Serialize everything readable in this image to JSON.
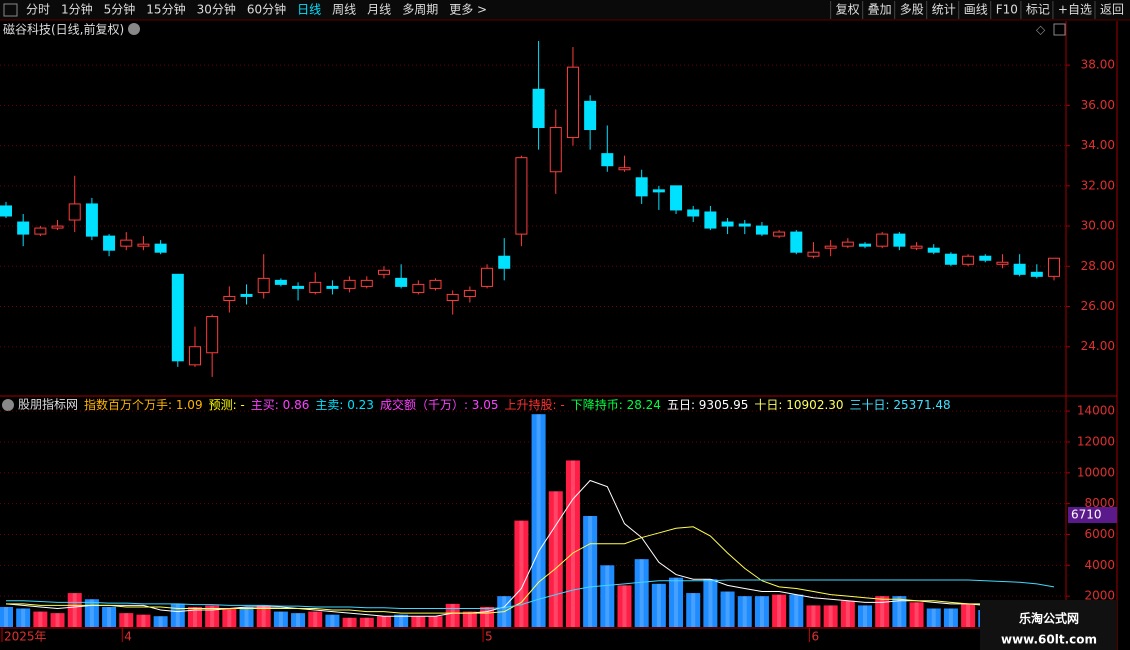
{
  "toolbar": {
    "periods": [
      {
        "label": "分时"
      },
      {
        "label": "1分钟"
      },
      {
        "label": "5分钟"
      },
      {
        "label": "15分钟"
      },
      {
        "label": "30分钟"
      },
      {
        "label": "60分钟"
      },
      {
        "label": "日线",
        "active": true
      },
      {
        "label": "周线"
      },
      {
        "label": "月线"
      },
      {
        "label": "多周期"
      },
      {
        "label": "更多 >"
      }
    ],
    "tools": [
      "复权",
      "叠加",
      "多股",
      "统计",
      "画线",
      "F10",
      "标记",
      "+自选",
      "返回"
    ]
  },
  "chart_data": [
    {
      "type": "candlestick",
      "title": "磁谷科技(日线,前复权)",
      "categories": [
        "2025年",
        null,
        null,
        null,
        null,
        null,
        null,
        "4",
        null,
        null,
        null,
        null,
        null,
        null,
        null,
        null,
        null,
        null,
        null,
        null,
        null,
        null,
        null,
        null,
        null,
        null,
        null,
        null,
        "5",
        null,
        null,
        null,
        null,
        null,
        null,
        null,
        null,
        null,
        null,
        null,
        null,
        null,
        null,
        null,
        null,
        null,
        null,
        "6",
        null,
        null,
        null,
        null,
        null,
        null,
        null,
        null,
        null,
        null,
        null,
        null,
        null,
        null
      ],
      "open": [
        31.0,
        30.2,
        29.6,
        29.9,
        30.3,
        31.1,
        29.5,
        29.0,
        29.0,
        29.1,
        27.6,
        23.1,
        23.7,
        26.3,
        26.6,
        26.7,
        27.3,
        27.0,
        26.7,
        27.0,
        26.9,
        27.0,
        27.6,
        27.4,
        26.7,
        26.9,
        26.3,
        26.5,
        27.0,
        28.5,
        29.6,
        36.8,
        32.7,
        34.4,
        36.2,
        33.6,
        32.8,
        32.4,
        31.8,
        32.0,
        30.8,
        30.7,
        30.2,
        30.1,
        30.0,
        29.5,
        29.7,
        28.5,
        28.9,
        29.0,
        29.1,
        29.0,
        29.6,
        28.9,
        28.9,
        28.6,
        28.1,
        28.5,
        28.1,
        28.1,
        27.7,
        27.5
      ],
      "high": [
        31.2,
        30.6,
        30.0,
        30.3,
        32.5,
        31.4,
        29.6,
        29.7,
        29.5,
        29.3,
        27.6,
        25.0,
        25.6,
        27.0,
        27.1,
        28.6,
        27.4,
        27.2,
        27.7,
        27.3,
        27.5,
        27.5,
        28.0,
        28.1,
        27.3,
        27.4,
        26.8,
        27.0,
        28.1,
        29.4,
        33.5,
        39.2,
        35.8,
        38.9,
        36.5,
        35.0,
        33.5,
        32.8,
        32.0,
        32.0,
        31.0,
        31.0,
        30.4,
        30.3,
        30.2,
        29.8,
        29.8,
        29.2,
        29.3,
        29.4,
        29.2,
        29.7,
        29.7,
        29.2,
        29.1,
        28.7,
        28.6,
        28.6,
        28.6,
        28.6,
        28.1,
        28.4
      ],
      "low": [
        30.4,
        29.0,
        29.5,
        29.8,
        29.7,
        29.3,
        28.5,
        28.8,
        28.8,
        28.6,
        23.0,
        23.0,
        22.5,
        25.7,
        26.1,
        26.4,
        27.0,
        26.3,
        26.6,
        26.6,
        26.7,
        26.9,
        27.4,
        26.9,
        26.6,
        26.8,
        25.6,
        26.2,
        26.9,
        27.3,
        29.0,
        33.8,
        31.6,
        34.0,
        33.8,
        32.7,
        32.7,
        31.1,
        30.8,
        30.6,
        30.2,
        29.8,
        29.6,
        29.6,
        29.5,
        29.4,
        28.6,
        28.4,
        28.5,
        28.9,
        28.9,
        28.9,
        28.8,
        28.8,
        28.6,
        28.0,
        28.0,
        28.2,
        27.9,
        27.5,
        27.4,
        27.3
      ],
      "close": [
        30.5,
        29.6,
        29.9,
        30.0,
        31.1,
        29.5,
        28.8,
        29.3,
        29.1,
        28.7,
        23.3,
        24.0,
        25.5,
        26.5,
        26.5,
        27.4,
        27.1,
        26.9,
        27.2,
        26.9,
        27.3,
        27.3,
        27.8,
        27.0,
        27.1,
        27.3,
        26.6,
        26.8,
        27.9,
        27.9,
        33.4,
        34.9,
        34.9,
        37.9,
        34.8,
        33.0,
        32.9,
        31.5,
        31.7,
        30.8,
        30.5,
        29.9,
        30.0,
        30.0,
        29.6,
        29.7,
        28.7,
        28.7,
        29.0,
        29.2,
        29.0,
        29.6,
        29.0,
        29.0,
        28.7,
        28.1,
        28.5,
        28.3,
        28.2,
        27.6,
        27.5,
        28.4
      ],
      "up_color": "#ff3c3c",
      "down_color": "#00e1ff",
      "ylim": [
        21.6,
        39.35
      ],
      "yticks": [
        {
          "value": 24,
          "label": "24.00"
        },
        {
          "value": 26,
          "label": "26.00"
        },
        {
          "value": 28,
          "label": "28.00"
        },
        {
          "value": 30,
          "label": "30.00"
        },
        {
          "value": 32,
          "label": "32.00"
        },
        {
          "value": 34,
          "label": "34.00"
        },
        {
          "value": 36,
          "label": "36.00"
        },
        {
          "value": 38,
          "label": "38.00"
        }
      ],
      "grid": true
    },
    {
      "type": "bar",
      "title": "股朋指标网",
      "indicators": [
        {
          "label": "指数百万个万手: 1.09",
          "color": "#ffb400"
        },
        {
          "label": "预测: -",
          "color": "#ffff00"
        },
        {
          "label": "主买: 0.86",
          "color": "#ff40ff"
        },
        {
          "label": "主卖: 0.23",
          "color": "#00e1ff"
        },
        {
          "label": "成交额（千万）: 3.05",
          "color": "#ff40ff"
        },
        {
          "label": "上升持股: -",
          "color": "#ff3030"
        },
        {
          "label": "下降持币: 28.24",
          "color": "#00ff40"
        },
        {
          "label": "五日: 9305.95",
          "color": "#ffffff"
        },
        {
          "label": "十日: 10902.30",
          "color": "#ffff60"
        },
        {
          "label": "三十日: 25371.48",
          "color": "#40e0ff"
        }
      ],
      "values": [
        1300,
        1200,
        1000,
        900,
        2200,
        1800,
        1300,
        900,
        800,
        700,
        1500,
        1300,
        1400,
        1200,
        1300,
        1400,
        1000,
        900,
        1000,
        800,
        600,
        600,
        700,
        800,
        700,
        700,
        1500,
        1000,
        1300,
        2000,
        6900,
        13800,
        8800,
        10800,
        7200,
        4000,
        2700,
        4400,
        2800,
        3200,
        2200,
        3100,
        2300,
        2000,
        2000,
        2100,
        2100,
        1400,
        1400,
        1700,
        1400,
        2000,
        2000,
        1600,
        1200,
        1200,
        1500,
        1100,
        900,
        800,
        700,
        900
      ],
      "up_color": "#ff1e46",
      "down_color": "#1e8cff",
      "series": [
        {
          "color": "#ffffff",
          "values": [
            1500,
            1400,
            1300,
            1200,
            1300,
            1400,
            1400,
            1400,
            1400,
            1100,
            1000,
            1100,
            1100,
            1200,
            1300,
            1300,
            1300,
            1200,
            1100,
            1000,
            900,
            800,
            700,
            700,
            700,
            700,
            900,
            900,
            1000,
            1300,
            2500,
            4900,
            6600,
            8300,
            9500,
            9100,
            6700,
            5800,
            4200,
            3400,
            3100,
            3100,
            2700,
            2500,
            2300,
            2300,
            2100,
            1900,
            1800,
            1700,
            1600,
            1600,
            1700,
            1700,
            1600,
            1500,
            1500,
            1400,
            1300,
            1200,
            1100,
            1000
          ]
        },
        {
          "color": "#ffff50",
          "values": [
            1500,
            1500,
            1400,
            1400,
            1400,
            1400,
            1400,
            1300,
            1300,
            1300,
            1200,
            1200,
            1200,
            1200,
            1200,
            1200,
            1200,
            1200,
            1200,
            1100,
            1100,
            1000,
            1000,
            900,
            900,
            900,
            900,
            900,
            900,
            1000,
            1600,
            2900,
            3800,
            4800,
            5400,
            5400,
            5400,
            5800,
            6100,
            6400,
            6500,
            5900,
            4800,
            3800,
            3000,
            2600,
            2500,
            2300,
            2100,
            2000,
            1900,
            1800,
            1800,
            1700,
            1700,
            1600,
            1500,
            1500,
            1400,
            1400,
            1300,
            1200
          ]
        },
        {
          "color": "#40d8ff",
          "values": [
            1700,
            1700,
            1650,
            1600,
            1600,
            1600,
            1550,
            1550,
            1500,
            1500,
            1500,
            1450,
            1450,
            1400,
            1400,
            1400,
            1350,
            1350,
            1300,
            1300,
            1300,
            1250,
            1250,
            1200,
            1200,
            1200,
            1200,
            1200,
            1200,
            1250,
            1450,
            1800,
            2100,
            2400,
            2600,
            2700,
            2800,
            2900,
            3000,
            3000,
            3000,
            3000,
            3050,
            3050,
            3050,
            3050,
            3050,
            3050,
            3050,
            3050,
            3050,
            3050,
            3050,
            3050,
            3050,
            3050,
            3050,
            3000,
            2950,
            2900,
            2800,
            2600
          ]
        }
      ],
      "cursor_label": "6710",
      "ylim": [
        0,
        14850
      ],
      "yticks": [
        2000,
        4000,
        6000,
        8000,
        10000,
        12000,
        14000
      ],
      "grid": true
    }
  ],
  "watermark": {
    "title": "乐淘公式网",
    "url": "www.60lt.com"
  }
}
